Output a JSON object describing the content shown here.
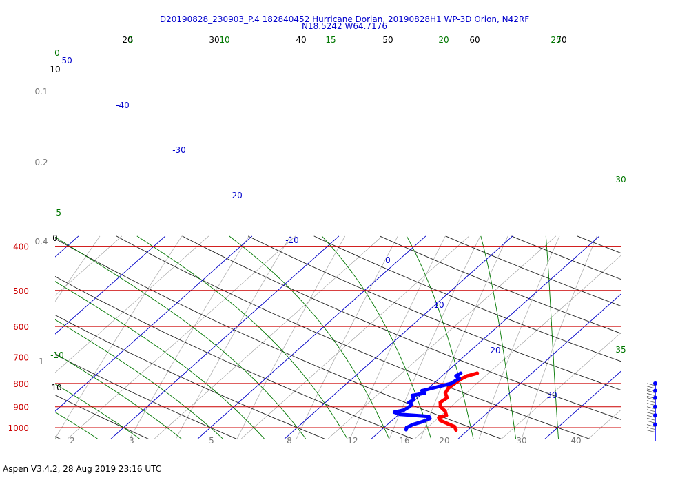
{
  "header": {
    "title_line1": "D20190828_230903_P.4 182840452 Hurricane Dorian, 20190828H1 WP-3D Orion, N42RF",
    "title_line2": "N18.5242 W64.7176"
  },
  "footer": {
    "text": "Aspen V3.4.2, 28 Aug 2019  23:16 UTC"
  },
  "chart_data": {
    "type": "line",
    "subtype": "skew-t log-p diagram",
    "y_axis": {
      "scale": "log",
      "unit": "hPa",
      "range": [
        1000,
        400
      ],
      "ticks": [
        400,
        500,
        600,
        700,
        800,
        900,
        1000
      ]
    },
    "isotherm_labels": [
      {
        "t": -50,
        "text": "-50"
      },
      {
        "t": -40,
        "text": "-40"
      },
      {
        "t": -30,
        "text": "-30"
      },
      {
        "t": -20,
        "text": "-20"
      },
      {
        "t": -10,
        "text": "-10"
      },
      {
        "t": 0,
        "text": "0"
      },
      {
        "t": 10,
        "text": "10"
      },
      {
        "t": 20,
        "text": "20"
      },
      {
        "t": 30,
        "text": "30"
      }
    ],
    "dry_adiabat_labels": [
      "20",
      "30",
      "40",
      "50",
      "60",
      "70"
    ],
    "moist_adiabat_labels": [
      "5",
      "10",
      "15",
      "20",
      "25",
      "30",
      "35"
    ],
    "moist_adiabat_left_labels": [
      "0",
      "-5",
      "-10"
    ],
    "mixing_ratio_bottom_labels": [
      "2",
      "3",
      "5",
      "8",
      "12",
      "16",
      "20",
      "30",
      "40"
    ],
    "mixing_ratio_left_labels": [
      "0.1",
      "0.2",
      "0.4",
      "1"
    ],
    "left_black_labels": [
      "10",
      "0",
      "-10"
    ],
    "series": [
      {
        "name": "Temperature",
        "color": "#ff0000",
        "points": [
          [
            760,
            23.7
          ],
          [
            770,
            22.9
          ],
          [
            780,
            22.6
          ],
          [
            800,
            22.4
          ],
          [
            820,
            22.3
          ],
          [
            840,
            22.6
          ],
          [
            860,
            23.4
          ],
          [
            880,
            23.2
          ],
          [
            900,
            23.8
          ],
          [
            920,
            24.9
          ],
          [
            940,
            25.6
          ],
          [
            950,
            25.0
          ],
          [
            965,
            25.6
          ],
          [
            980,
            26.8
          ],
          [
            995,
            28.0
          ],
          [
            1012,
            28.6
          ]
        ]
      },
      {
        "name": "Dew point",
        "color": "#0000ff",
        "points": [
          [
            760,
            21.8
          ],
          [
            770,
            21.6
          ],
          [
            780,
            22.3
          ],
          [
            800,
            22.0
          ],
          [
            820,
            20.4
          ],
          [
            830,
            19.6
          ],
          [
            840,
            20.2
          ],
          [
            850,
            19.1
          ],
          [
            860,
            19.5
          ],
          [
            870,
            19.8
          ],
          [
            880,
            19.6
          ],
          [
            890,
            20.2
          ],
          [
            900,
            20.2
          ],
          [
            915,
            20.0
          ],
          [
            925,
            19.2
          ],
          [
            935,
            20.1
          ],
          [
            945,
            23.7
          ],
          [
            955,
            24.1
          ],
          [
            970,
            23.7
          ],
          [
            985,
            22.9
          ],
          [
            1000,
            22.6
          ],
          [
            1010,
            22.8
          ]
        ]
      }
    ],
    "wind_barb_levels": [
      800,
      830,
      860,
      900,
      940,
      985
    ]
  }
}
